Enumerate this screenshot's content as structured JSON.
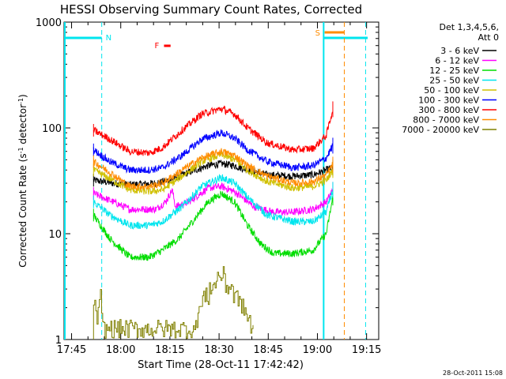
{
  "chart_data": {
    "type": "line",
    "title": "HESSI Observing Summary Count Rates, Corrected",
    "xlabel": "Start Time (28-Oct-11 17:42:42)",
    "ylabel_main": "Corrected Count Rate (s",
    "ylabel_sup1": "-1",
    "ylabel_mid": " detector",
    "ylabel_sup2": "-1",
    "ylabel_end": ")",
    "yscale": "log",
    "ylim": [
      1,
      1000
    ],
    "xlim_minutes": [
      0,
      96
    ],
    "x_tick_labels": [
      "17:45",
      "18:00",
      "18:15",
      "18:30",
      "18:45",
      "19:00",
      "19:15"
    ],
    "x_tick_minutes": [
      2.3,
      17.3,
      32.3,
      47.3,
      62.3,
      77.3,
      92.3
    ],
    "y_tick_labels": [
      "1",
      "10",
      "100",
      "1000"
    ],
    "y_tick_values": [
      1,
      10,
      100,
      1000
    ],
    "legend_header": [
      "Det 1,3,4,5,6,",
      "Att 0"
    ],
    "legend_position": "top-right",
    "series": [
      {
        "name": "3 - 6 keV",
        "color": "#000000",
        "points": [
          [
            9,
            32
          ],
          [
            15,
            30
          ],
          [
            20,
            29
          ],
          [
            28,
            30
          ],
          [
            32,
            32
          ],
          [
            38,
            38
          ],
          [
            44,
            44
          ],
          [
            48,
            46
          ],
          [
            52,
            44
          ],
          [
            56,
            40
          ],
          [
            62,
            36
          ],
          [
            70,
            35
          ],
          [
            76,
            36
          ],
          [
            80,
            40
          ],
          [
            82,
            42
          ]
        ]
      },
      {
        "name": "6 - 12 keV",
        "color": "#ff00ff",
        "points": [
          [
            9,
            24
          ],
          [
            15,
            20
          ],
          [
            20,
            17
          ],
          [
            28,
            17
          ],
          [
            31,
            20
          ],
          [
            33,
            26
          ],
          [
            34,
            18
          ],
          [
            38,
            20
          ],
          [
            44,
            27
          ],
          [
            48,
            28
          ],
          [
            52,
            25
          ],
          [
            58,
            18
          ],
          [
            64,
            16
          ],
          [
            70,
            16
          ],
          [
            76,
            17
          ],
          [
            80,
            20
          ],
          [
            82,
            26
          ]
        ]
      },
      {
        "name": "12 - 25 keV",
        "color": "#00dd00",
        "points": [
          [
            9,
            15
          ],
          [
            14,
            9
          ],
          [
            20,
            6
          ],
          [
            26,
            6
          ],
          [
            30,
            7
          ],
          [
            35,
            9
          ],
          [
            40,
            14
          ],
          [
            44,
            20
          ],
          [
            48,
            24
          ],
          [
            52,
            20
          ],
          [
            56,
            12
          ],
          [
            60,
            8
          ],
          [
            64,
            6.5
          ],
          [
            70,
            6.5
          ],
          [
            76,
            7
          ],
          [
            80,
            10
          ],
          [
            82,
            22
          ]
        ]
      },
      {
        "name": "25 - 50 keV",
        "color": "#00e5ee",
        "points": [
          [
            9,
            20
          ],
          [
            14,
            15
          ],
          [
            20,
            12
          ],
          [
            26,
            12
          ],
          [
            30,
            13
          ],
          [
            36,
            18
          ],
          [
            42,
            28
          ],
          [
            48,
            34
          ],
          [
            52,
            30
          ],
          [
            56,
            22
          ],
          [
            62,
            15
          ],
          [
            70,
            13
          ],
          [
            76,
            13
          ],
          [
            80,
            16
          ],
          [
            82,
            26
          ]
        ]
      },
      {
        "name": "50 - 100 keV",
        "color": "#d0c000",
        "points": [
          [
            9,
            40
          ],
          [
            14,
            33
          ],
          [
            20,
            26
          ],
          [
            26,
            25
          ],
          [
            30,
            26
          ],
          [
            36,
            35
          ],
          [
            42,
            48
          ],
          [
            48,
            56
          ],
          [
            52,
            50
          ],
          [
            56,
            40
          ],
          [
            62,
            31
          ],
          [
            70,
            27
          ],
          [
            76,
            28
          ],
          [
            80,
            32
          ],
          [
            82,
            40
          ]
        ]
      },
      {
        "name": "100 - 300 keV",
        "color": "#0000ff",
        "points": [
          [
            9,
            62
          ],
          [
            14,
            48
          ],
          [
            20,
            40
          ],
          [
            26,
            40
          ],
          [
            30,
            42
          ],
          [
            36,
            55
          ],
          [
            42,
            78
          ],
          [
            48,
            90
          ],
          [
            52,
            80
          ],
          [
            56,
            62
          ],
          [
            62,
            48
          ],
          [
            70,
            42
          ],
          [
            76,
            44
          ],
          [
            80,
            52
          ],
          [
            82,
            68
          ]
        ]
      },
      {
        "name": "300 - 800 keV",
        "color": "#ff0000",
        "points": [
          [
            9,
            95
          ],
          [
            14,
            78
          ],
          [
            20,
            60
          ],
          [
            26,
            58
          ],
          [
            30,
            65
          ],
          [
            36,
            95
          ],
          [
            42,
            135
          ],
          [
            48,
            152
          ],
          [
            52,
            135
          ],
          [
            56,
            100
          ],
          [
            62,
            72
          ],
          [
            70,
            62
          ],
          [
            76,
            64
          ],
          [
            80,
            85
          ],
          [
            82,
            150
          ]
        ]
      },
      {
        "name": "800 - 7000 keV",
        "color": "#ff8c00",
        "points": [
          [
            9,
            48
          ],
          [
            14,
            38
          ],
          [
            20,
            28
          ],
          [
            26,
            28
          ],
          [
            30,
            30
          ],
          [
            36,
            40
          ],
          [
            42,
            52
          ],
          [
            48,
            60
          ],
          [
            52,
            55
          ],
          [
            56,
            44
          ],
          [
            62,
            35
          ],
          [
            70,
            30
          ],
          [
            76,
            31
          ],
          [
            80,
            36
          ],
          [
            82,
            45
          ]
        ]
      },
      {
        "name": "7000 - 20000 keV",
        "color": "#808000",
        "points": [
          [
            9,
            2.6
          ],
          [
            10,
            1.5
          ],
          [
            11,
            2.4
          ],
          [
            12,
            1.2
          ],
          [
            40,
            1.2
          ],
          [
            41,
            2.0
          ],
          [
            43,
            2.5
          ],
          [
            45,
            3.0
          ],
          [
            47,
            3.8
          ],
          [
            49,
            3.6
          ],
          [
            51,
            3.0
          ],
          [
            53,
            2.4
          ],
          [
            55,
            1.9
          ],
          [
            57,
            1.4
          ],
          [
            58,
            1.2
          ]
        ]
      }
    ],
    "markers": {
      "N": {
        "label": "N",
        "color": "#00e5ee"
      },
      "S": {
        "label": "S",
        "color": "#ff8c00"
      },
      "F": {
        "label": "F",
        "color": "#ff0000"
      }
    },
    "timestamp": "28-Oct-2011 15:08"
  }
}
